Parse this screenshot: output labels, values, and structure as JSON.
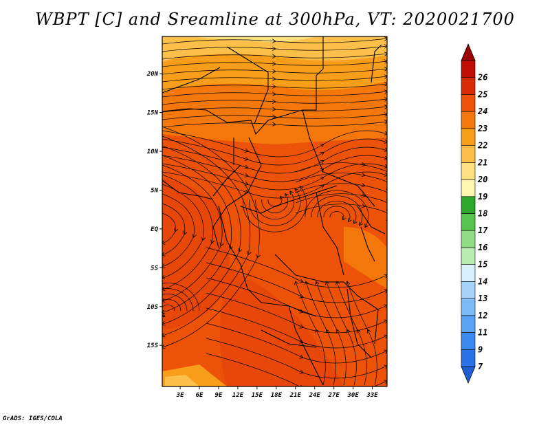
{
  "title": "WBPT [C] and Sreamline at 300hPa, VT: 2020021700",
  "credit": "GrADS: IGES/COLA",
  "map": {
    "variable": "Wet-bulb potential temperature",
    "units": "C",
    "level": "300hPa",
    "valid_time": "2020021700",
    "lat_labels": [
      "20N",
      "15N",
      "10N",
      "5N",
      "EQ",
      "5S",
      "10S",
      "15S"
    ],
    "lat_values": [
      20,
      15,
      10,
      5,
      0,
      -5,
      -10,
      -15
    ],
    "lon_labels": [
      "3E",
      "6E",
      "9E",
      "12E",
      "15E",
      "18E",
      "21E",
      "24E",
      "27E",
      "30E",
      "33E"
    ],
    "lon_values": [
      3,
      6,
      9,
      12,
      15,
      18,
      21,
      24,
      27,
      30,
      33
    ]
  },
  "colorbar": {
    "levels": [
      "7",
      "9",
      "11",
      "12",
      "13",
      "14",
      "15",
      "16",
      "17",
      "18",
      "19",
      "20",
      "21",
      "22",
      "23",
      "24",
      "25",
      "26"
    ],
    "colors": [
      "#1f5fd6",
      "#2a73e6",
      "#3c8bf0",
      "#5aa3f5",
      "#7dbaf8",
      "#a6d3fa",
      "#d8f0fc",
      "#b8ecb0",
      "#8fdd84",
      "#58c450",
      "#2ea82b",
      "#fff4b0",
      "#fde080",
      "#fbbf4a",
      "#f99e1a",
      "#f4770c",
      "#ec5309",
      "#d92b06",
      "#c00d05",
      "#9e0204"
    ]
  }
}
